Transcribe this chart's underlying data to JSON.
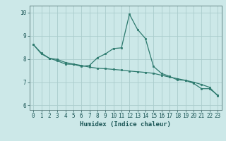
{
  "title": "",
  "xlabel": "Humidex (Indice chaleur)",
  "ylabel": "",
  "background_color": "#cce8e8",
  "grid_color": "#aacccc",
  "line_color": "#2d7a6e",
  "ylim": [
    5.8,
    10.3
  ],
  "xlim": [
    -0.5,
    23.5
  ],
  "yticks": [
    6,
    7,
    8,
    9,
    10
  ],
  "xticks": [
    0,
    1,
    2,
    3,
    4,
    5,
    6,
    7,
    8,
    9,
    10,
    11,
    12,
    13,
    14,
    15,
    16,
    17,
    18,
    19,
    20,
    21,
    22,
    23
  ],
  "line1_x": [
    0,
    1,
    2,
    3,
    4,
    5,
    6,
    7,
    8,
    9,
    10,
    11,
    12,
    13,
    14,
    15,
    16,
    17,
    18,
    19,
    20,
    21,
    22,
    23
  ],
  "line1_y": [
    8.62,
    8.25,
    8.03,
    7.92,
    7.78,
    7.77,
    7.68,
    7.72,
    8.05,
    8.22,
    8.45,
    8.48,
    9.93,
    9.28,
    8.88,
    7.68,
    7.38,
    7.25,
    7.1,
    7.08,
    6.95,
    6.72,
    6.72,
    6.45
  ],
  "line2_x": [
    0,
    1,
    2,
    3,
    4,
    5,
    6,
    7,
    8,
    9,
    10,
    11,
    12,
    13,
    14,
    15,
    16,
    17,
    18,
    19,
    20,
    21,
    22,
    23
  ],
  "line2_y": [
    8.62,
    8.22,
    8.03,
    7.98,
    7.85,
    7.78,
    7.72,
    7.65,
    7.6,
    7.58,
    7.55,
    7.52,
    7.48,
    7.45,
    7.42,
    7.38,
    7.3,
    7.22,
    7.15,
    7.08,
    7.0,
    6.9,
    6.78,
    6.42
  ]
}
